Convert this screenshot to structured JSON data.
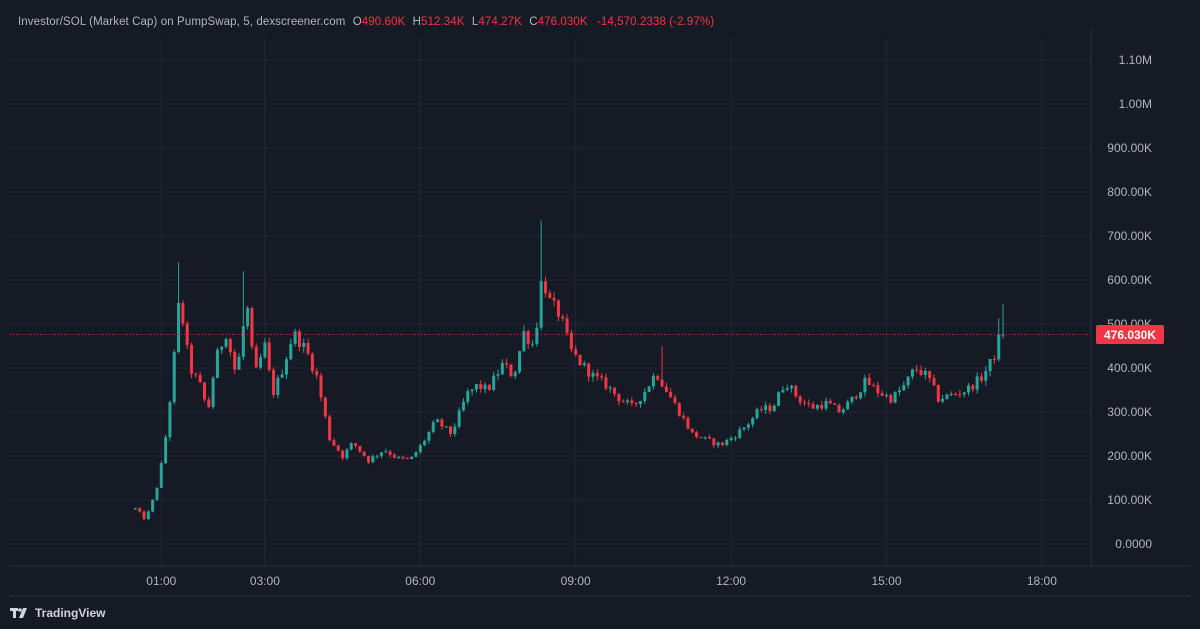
{
  "header": {
    "symbol": "Investor/SOL (Market Cap) on PumpSwap, 5, dexscreener.com",
    "o_label": "O",
    "o_value": "490.60K",
    "h_label": "H",
    "h_value": "512.34K",
    "l_label": "L",
    "l_value": "474.27K",
    "c_label": "C",
    "c_value": "476.030K",
    "change": "-14,570.2338 (-2.97%)"
  },
  "brand": {
    "name": "TradingView",
    "icon": "tradingview-logo-icon"
  },
  "last_price_label": "476.030K",
  "colors": {
    "up": "#26a69a",
    "down": "#f23645",
    "background": "#161a25",
    "grid": "#232733",
    "text": "#b2b5be"
  },
  "chart_data": {
    "type": "candlestick",
    "title": "Investor/SOL (Market Cap) on PumpSwap, 5, dexscreener.com",
    "interval": "5",
    "x_ticks": [
      "01:00",
      "03:00",
      "06:00",
      "09:00",
      "12:00",
      "15:00",
      "18:00"
    ],
    "y_ticks": [
      "1.10M",
      "1.00M",
      "900.00K",
      "800.00K",
      "700.00K",
      "600.00K",
      "500.00K",
      "400.00K",
      "300.00K",
      "200.00K",
      "100.00K",
      "0.0000"
    ],
    "ylim": [
      -50000,
      1150000
    ],
    "xlim_hours": [
      -0.5,
      21.0
    ],
    "last_price": 476030,
    "grid": true,
    "path_points": [
      [
        0.5,
        80000
      ],
      [
        0.7,
        55000
      ],
      [
        0.9,
        120000
      ],
      [
        1.05,
        210000
      ],
      [
        1.2,
        360000
      ],
      [
        1.35,
        560000
      ],
      [
        1.55,
        400000
      ],
      [
        1.75,
        360000
      ],
      [
        1.9,
        300000
      ],
      [
        2.05,
        420000
      ],
      [
        2.25,
        480000
      ],
      [
        2.45,
        380000
      ],
      [
        2.65,
        550000
      ],
      [
        2.8,
        380000
      ],
      [
        3.0,
        450000
      ],
      [
        3.15,
        340000
      ],
      [
        3.35,
        400000
      ],
      [
        3.55,
        480000
      ],
      [
        3.8,
        440000
      ],
      [
        4.0,
        380000
      ],
      [
        4.25,
        240000
      ],
      [
        4.5,
        200000
      ],
      [
        4.7,
        230000
      ],
      [
        5.0,
        190000
      ],
      [
        5.3,
        215000
      ],
      [
        5.55,
        195000
      ],
      [
        5.8,
        190000
      ],
      [
        6.05,
        230000
      ],
      [
        6.3,
        280000
      ],
      [
        6.6,
        250000
      ],
      [
        6.9,
        340000
      ],
      [
        7.1,
        360000
      ],
      [
        7.3,
        350000
      ],
      [
        7.6,
        410000
      ],
      [
        7.8,
        380000
      ],
      [
        8.0,
        480000
      ],
      [
        8.2,
        450000
      ],
      [
        8.35,
        610000
      ],
      [
        8.5,
        550000
      ],
      [
        8.7,
        520000
      ],
      [
        8.9,
        440000
      ],
      [
        9.1,
        410000
      ],
      [
        9.35,
        380000
      ],
      [
        9.6,
        360000
      ],
      [
        9.85,
        330000
      ],
      [
        10.1,
        310000
      ],
      [
        10.35,
        350000
      ],
      [
        10.55,
        390000
      ],
      [
        10.8,
        340000
      ],
      [
        11.0,
        300000
      ],
      [
        11.25,
        250000
      ],
      [
        11.55,
        235000
      ],
      [
        11.8,
        225000
      ],
      [
        12.05,
        245000
      ],
      [
        12.3,
        270000
      ],
      [
        12.55,
        305000
      ],
      [
        12.8,
        310000
      ],
      [
        13.05,
        370000
      ],
      [
        13.3,
        330000
      ],
      [
        13.55,
        310000
      ],
      [
        13.85,
        320000
      ],
      [
        14.1,
        300000
      ],
      [
        14.35,
        330000
      ],
      [
        14.6,
        370000
      ],
      [
        14.85,
        345000
      ],
      [
        15.1,
        330000
      ],
      [
        15.35,
        360000
      ],
      [
        15.55,
        400000
      ],
      [
        15.8,
        380000
      ],
      [
        16.0,
        330000
      ],
      [
        16.3,
        340000
      ],
      [
        16.55,
        350000
      ],
      [
        16.85,
        380000
      ],
      [
        17.05,
        420000
      ],
      [
        17.25,
        476000
      ]
    ],
    "spikes": [
      {
        "t": 1.35,
        "high": 640000
      },
      {
        "t": 2.6,
        "high": 620000
      },
      {
        "t": 8.35,
        "high": 735000
      },
      {
        "t": 10.65,
        "high": 450000
      },
      {
        "t": 17.25,
        "high": 545000
      }
    ]
  }
}
